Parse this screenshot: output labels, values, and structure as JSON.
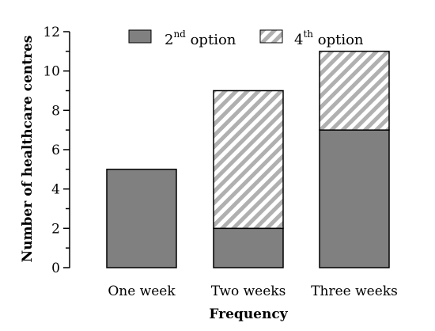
{
  "chart_data": {
    "type": "bar",
    "stacked": true,
    "categories": [
      "One week",
      "Two weeks",
      "Three weeks"
    ],
    "series": [
      {
        "name": "2nd option",
        "values": [
          5,
          2,
          7
        ],
        "color": "#808080",
        "pattern": "solid"
      },
      {
        "name": "4th option",
        "values": [
          0,
          7,
          4
        ],
        "color": "#b0b0b0",
        "pattern": "diagonal-hatch"
      }
    ],
    "legend": [
      {
        "base": "2",
        "sup": "nd",
        "text": " option"
      },
      {
        "base": "4",
        "sup": "th",
        "text": " option"
      }
    ],
    "xlabel": "Frequency",
    "ylabel": "Number of healthcare centres",
    "ylim": [
      0,
      12
    ],
    "yticks": [
      "0",
      "2",
      "4",
      "6",
      "8",
      "10",
      "12"
    ],
    "grid": false,
    "legend_position": "top"
  }
}
